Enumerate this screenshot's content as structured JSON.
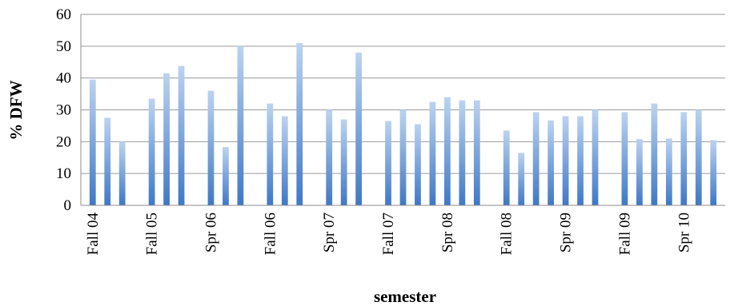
{
  "chart_data": {
    "type": "bar",
    "title": "",
    "xlabel": "semester",
    "ylabel": "% DFW",
    "ylim": [
      0,
      60
    ],
    "yticks": [
      0,
      10,
      20,
      30,
      40,
      50,
      60
    ],
    "grid": true,
    "legend": "none",
    "bar_color": "#5b8fd3",
    "groups": [
      {
        "label": "Fall 04",
        "values": [
          39.5,
          27.5,
          20
        ]
      },
      {
        "label": "Fall 05",
        "values": [
          33.5,
          41.5,
          43.8
        ]
      },
      {
        "label": "Spr 06",
        "values": [
          36,
          18.3,
          50
        ]
      },
      {
        "label": "Fall 06",
        "values": [
          32,
          28,
          51
        ]
      },
      {
        "label": "Spr 07",
        "values": [
          30,
          27,
          48
        ]
      },
      {
        "label": "Fall 07",
        "values": [
          26.5,
          30,
          25.5,
          32.5,
          34,
          33,
          33
        ]
      },
      {
        "label": "Fall 08",
        "values": [
          23.5,
          16.5,
          29.3,
          26.7,
          28,
          28,
          30
        ]
      },
      {
        "label": "Fall 09",
        "values": [
          29.3,
          20.8,
          32,
          21,
          29.3,
          30,
          20.5
        ]
      }
    ],
    "x_tick_labels": [
      {
        "label": "Fall 04",
        "group": 0,
        "bar": 0
      },
      {
        "label": "Fall 05",
        "group": 1,
        "bar": 0
      },
      {
        "label": "Spr 06",
        "group": 2,
        "bar": 0
      },
      {
        "label": "Fall 06",
        "group": 3,
        "bar": 0
      },
      {
        "label": "Spr 07",
        "group": 4,
        "bar": 0
      },
      {
        "label": "Fall 07",
        "group": 5,
        "bar": 0
      },
      {
        "label": "Spr 08",
        "group": 5,
        "bar": 4
      },
      {
        "label": "Fall 08",
        "group": 6,
        "bar": 0
      },
      {
        "label": "Spr 09",
        "group": 6,
        "bar": 4
      },
      {
        "label": "Fall 09",
        "group": 7,
        "bar": 0
      },
      {
        "label": "Spr 10",
        "group": 7,
        "bar": 4
      }
    ]
  }
}
